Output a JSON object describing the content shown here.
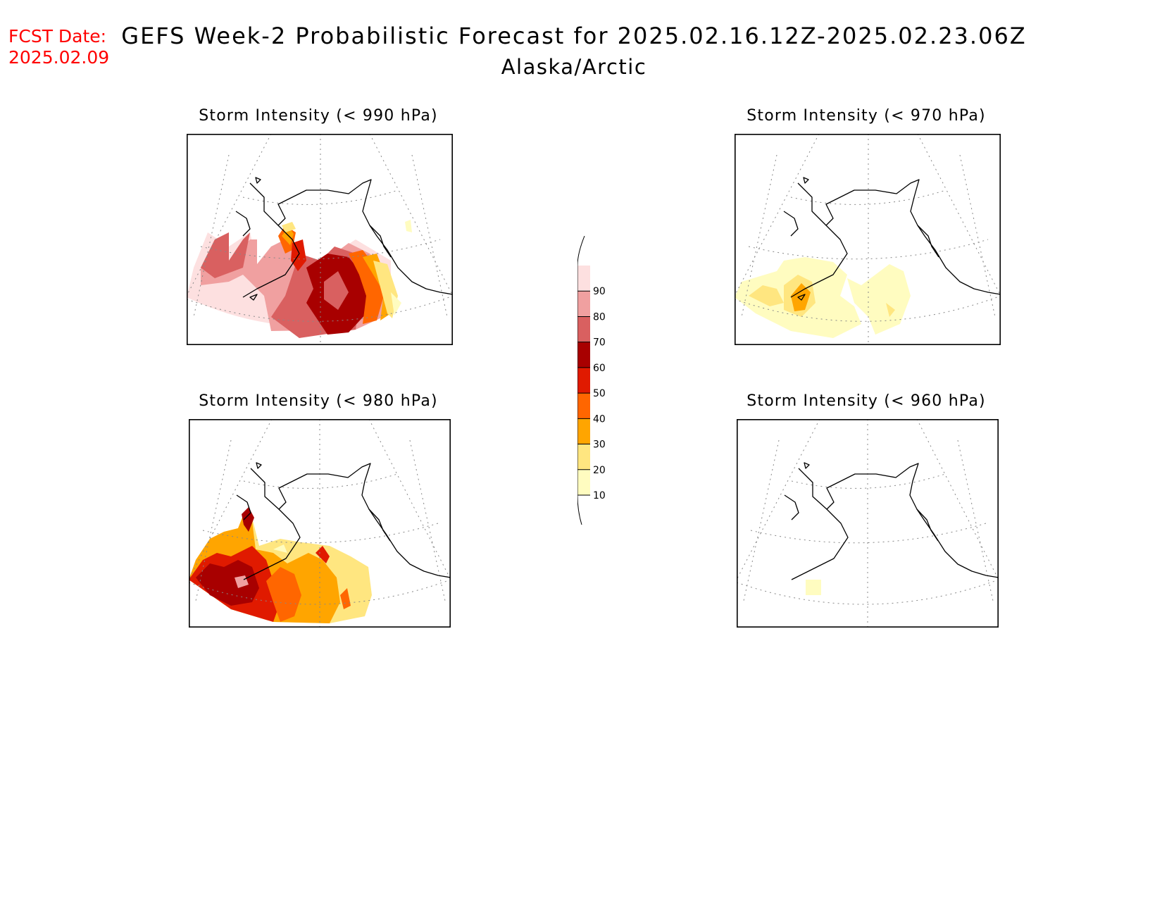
{
  "header": {
    "fcst_label": "FCST Date:",
    "fcst_date": "2025.02.09",
    "title": "GEFS Week-2 Probabilistic Forecast for 2025.02.16.12Z-2025.02.23.06Z",
    "subtitle": "Alaska/Arctic",
    "fcst_color": "#ff0000"
  },
  "panels": [
    {
      "title": "Storm Intensity (< 990 hPa)"
    },
    {
      "title": "Storm Intensity (< 970 hPa)"
    },
    {
      "title": "Storm Intensity (< 980 hPa)"
    },
    {
      "title": "Storm Intensity (< 960 hPa)"
    }
  ],
  "legend": {
    "ticks": [
      "10",
      "20",
      "30",
      "40",
      "50",
      "60",
      "70",
      "80",
      "90"
    ],
    "colors": [
      "#fffcc0",
      "#ffe680",
      "#ffa500",
      "#ff6600",
      "#e01a00",
      "#a80000",
      "#d96060",
      "#f0a0a0",
      "#fde0e0"
    ]
  }
}
